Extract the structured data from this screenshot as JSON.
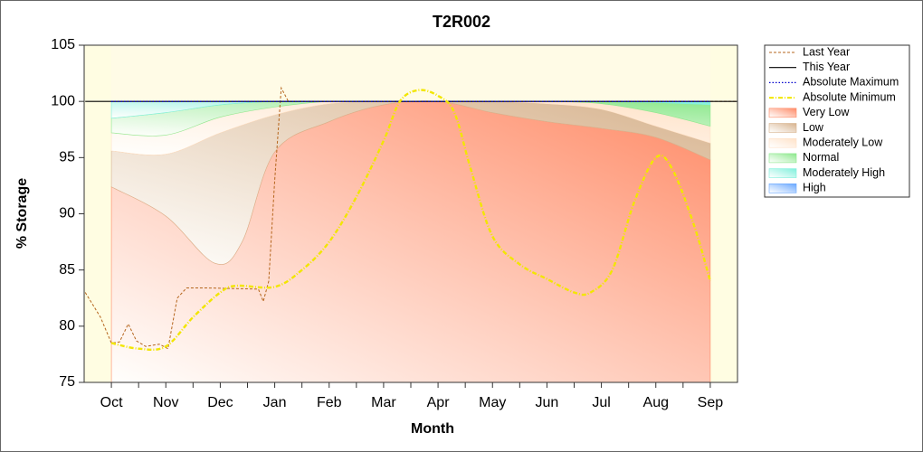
{
  "chart_data": {
    "type": "line",
    "title": "T2R002",
    "x_label": "Month",
    "y_label": "% Storage",
    "xlim": [
      -0.5,
      11.5
    ],
    "xticks": [
      {
        "value": 0,
        "label": "Oct"
      },
      {
        "value": 1,
        "label": "Nov"
      },
      {
        "value": 2,
        "label": "Dec"
      },
      {
        "value": 3,
        "label": "Jan"
      },
      {
        "value": 4,
        "label": "Feb"
      },
      {
        "value": 5,
        "label": "Mar"
      },
      {
        "value": 6,
        "label": "Apr"
      },
      {
        "value": 7,
        "label": "May"
      },
      {
        "value": 8,
        "label": "Jun"
      },
      {
        "value": 9,
        "label": "Jul"
      },
      {
        "value": 10,
        "label": "Aug"
      },
      {
        "value": 11,
        "label": "Sep"
      }
    ],
    "ylim": [
      75,
      105
    ],
    "yticks": [
      75,
      80,
      85,
      90,
      95,
      100,
      105
    ],
    "series": [
      {
        "name": "Last Year",
        "kind": "line",
        "style": "dashed",
        "color": "#b5651d",
        "x": [
          -0.48,
          -0.2,
          0,
          0.15,
          0.31,
          0.46,
          0.63,
          0.88,
          1.04,
          1.21,
          1.38,
          1.79,
          2.7,
          2.79,
          2.89,
          3.0,
          3.12,
          3.25,
          11.49
        ],
        "values": [
          83,
          80.8,
          78.5,
          78.6,
          80.2,
          78.7,
          78.2,
          78.4,
          78.0,
          82.5,
          83.4,
          83.4,
          83.3,
          82.2,
          84,
          93,
          101.2,
          100,
          100
        ]
      },
      {
        "name": "This Year",
        "kind": "line",
        "style": "solid",
        "color": "#000000",
        "x": [
          -0.48,
          11.49
        ],
        "values": [
          100,
          100
        ]
      },
      {
        "name": "Absolute Maximum",
        "kind": "line",
        "style": "dotted",
        "color": "#0000cd",
        "x": [
          0,
          11
        ],
        "values": [
          100,
          100
        ]
      },
      {
        "name": "Absolute Minimum",
        "kind": "line",
        "style": "dash-dot",
        "color": "#f2e600",
        "x": [
          0,
          0.5,
          1,
          1.5,
          2,
          2.3,
          3,
          3.5,
          4,
          4.5,
          5,
          5.3,
          5.64,
          6,
          6.3,
          6.6,
          7,
          7.5,
          8,
          8.5,
          8.8,
          9.2,
          9.6,
          10,
          10.3,
          10.7,
          11
        ],
        "values": [
          78.5,
          78.0,
          78.2,
          80.8,
          83.0,
          83.6,
          83.5,
          85,
          87.5,
          91.5,
          96.5,
          100,
          101,
          100.5,
          99,
          94,
          88,
          85.5,
          84.2,
          83,
          83,
          85,
          91,
          95,
          94,
          89,
          84
        ]
      },
      {
        "name": "Very Low",
        "kind": "zone",
        "color": "#ff8a66",
        "x": [
          0,
          1,
          1.9,
          2.4,
          3,
          4,
          5,
          6,
          7,
          8,
          9,
          10,
          11
        ],
        "values": [
          92.4,
          89.8,
          85.6,
          87.5,
          95.5,
          98.2,
          99.7,
          100,
          99.0,
          98.2,
          97.6,
          96.8,
          94.8
        ]
      },
      {
        "name": "Low",
        "kind": "zone",
        "color": "#d7b38e",
        "x": [
          0,
          1,
          2,
          3,
          4,
          5,
          6,
          7,
          8,
          9,
          10,
          11
        ],
        "values": [
          95.6,
          95.3,
          97.2,
          98.8,
          99.8,
          100,
          100,
          100,
          99.8,
          99.3,
          97.8,
          96.3
        ]
      },
      {
        "name": "Moderately Low",
        "kind": "zone",
        "color": "#ffe2c8",
        "x": [
          0,
          1,
          2,
          3,
          4,
          5,
          6,
          7,
          8,
          9,
          10,
          11
        ],
        "values": [
          97.2,
          97.0,
          98.6,
          99.5,
          100,
          100,
          100,
          100,
          100,
          99.8,
          99.0,
          97.8
        ]
      },
      {
        "name": "Normal",
        "kind": "zone",
        "color": "#8de88d",
        "x": [
          0,
          1,
          2,
          3,
          4,
          5,
          6,
          7,
          8,
          9,
          10,
          11
        ],
        "values": [
          98.5,
          99.0,
          99.7,
          100,
          100,
          100,
          100,
          100,
          100,
          100,
          99.9,
          99.7
        ]
      },
      {
        "name": "Moderately High",
        "kind": "zone",
        "color": "#7ff0dc",
        "x": [
          0,
          1,
          2,
          3,
          4,
          5,
          6,
          7,
          8,
          9,
          10,
          11
        ],
        "values": [
          100,
          100,
          100,
          100,
          100,
          100,
          100,
          100,
          100,
          100,
          100,
          100
        ]
      },
      {
        "name": "High",
        "kind": "zone",
        "color": "#6aa8ff",
        "x": [
          0,
          1,
          2,
          3,
          4,
          5,
          6,
          7,
          8,
          9,
          10,
          11
        ],
        "values": [
          100,
          100,
          100,
          100,
          100,
          100,
          100,
          100,
          100,
          100,
          100,
          100
        ]
      }
    ]
  }
}
